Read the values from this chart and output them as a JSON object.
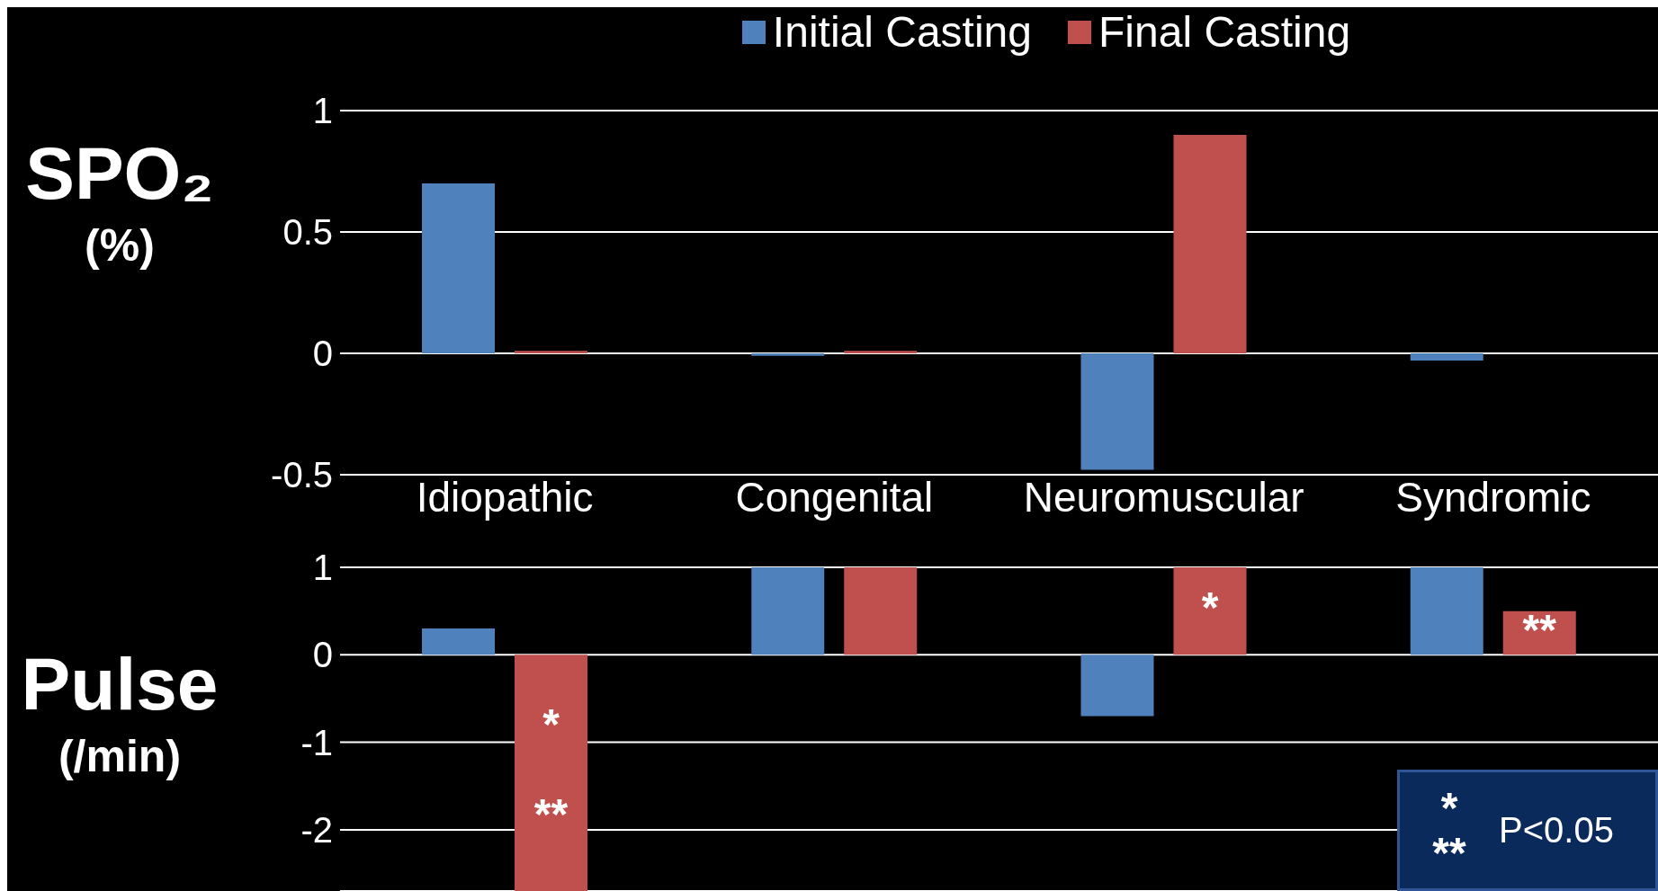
{
  "chart_data": [
    {
      "type": "bar",
      "ylabel": "SPO₂ (%)",
      "categories": [
        "Idiopathic",
        "Congenital",
        "Neuromuscular",
        "Syndromic"
      ],
      "series": [
        {
          "name": "Initial Casting",
          "color": "#4f81bd",
          "values": [
            0.7,
            -0.01,
            -0.48,
            -0.03
          ]
        },
        {
          "name": "Final Casting",
          "color": "#c0504d",
          "values": [
            0.01,
            0.01,
            0.9,
            0
          ]
        }
      ],
      "ylim": [
        -0.5,
        1
      ],
      "yticks": [
        -0.5,
        0,
        0.5,
        1
      ],
      "grid": "y",
      "legend": "top"
    },
    {
      "type": "bar",
      "ylabel": "Pulse (/min)",
      "categories": [
        null,
        null,
        null,
        null
      ],
      "series": [
        {
          "color": "#4f81bd",
          "values": [
            0.3,
            1,
            -0.7,
            1
          ]
        },
        {
          "color": "#c0504d",
          "values": [
            -2.7,
            1,
            1,
            0.5
          ],
          "value_labels": [
            "*\n**",
            null,
            "*",
            "**"
          ]
        }
      ],
      "ylim": [
        -2.7,
        1
      ],
      "yticks": [
        -2,
        -1,
        0,
        1
      ],
      "grid": "y",
      "tick_labels": "y",
      "annotations": [
        "*",
        "**",
        "P<0.05"
      ]
    }
  ]
}
